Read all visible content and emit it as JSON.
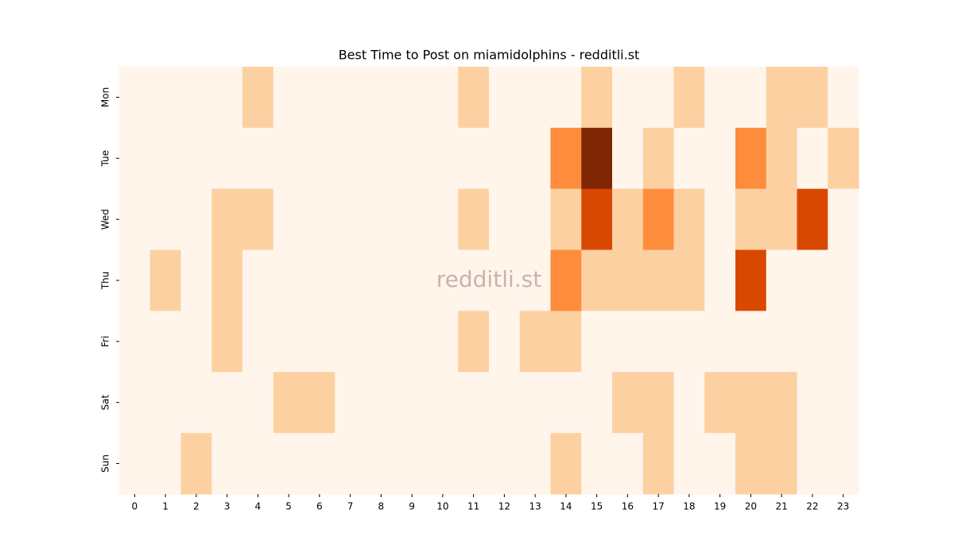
{
  "chart_data": {
    "type": "heatmap",
    "title": "Best Time to Post on miamidolphins - redditli.st",
    "watermark": "redditli.st",
    "xcategories": [
      0,
      1,
      2,
      3,
      4,
      5,
      6,
      7,
      8,
      9,
      10,
      11,
      12,
      13,
      14,
      15,
      16,
      17,
      18,
      19,
      20,
      21,
      22,
      23
    ],
    "ycategories": [
      "Mon",
      "Tue",
      "Wed",
      "Thu",
      "Fri",
      "Sat",
      "Sun"
    ],
    "colormap": "Oranges",
    "zlim": [
      0,
      4
    ],
    "values": [
      [
        0,
        0,
        0,
        0,
        1,
        0,
        0,
        0,
        0,
        0,
        0,
        1,
        0,
        0,
        0,
        1,
        0,
        0,
        1,
        0,
        0,
        1,
        1,
        0
      ],
      [
        0,
        0,
        0,
        0,
        0,
        0,
        0,
        0,
        0,
        0,
        0,
        0,
        0,
        0,
        2,
        4,
        0,
        1,
        0,
        0,
        2,
        1,
        0,
        1
      ],
      [
        0,
        0,
        0,
        1,
        1,
        0,
        0,
        0,
        0,
        0,
        0,
        1,
        0,
        0,
        1,
        3,
        1,
        2,
        1,
        0,
        1,
        1,
        3,
        0
      ],
      [
        0,
        1,
        0,
        1,
        0,
        0,
        0,
        0,
        0,
        0,
        0,
        0,
        0,
        0,
        2,
        1,
        1,
        1,
        1,
        0,
        3,
        0,
        0,
        0
      ],
      [
        0,
        0,
        0,
        1,
        0,
        0,
        0,
        0,
        0,
        0,
        0,
        1,
        0,
        1,
        1,
        0,
        0,
        0,
        0,
        0,
        0,
        0,
        0,
        0
      ],
      [
        0,
        0,
        0,
        0,
        0,
        1,
        1,
        0,
        0,
        0,
        0,
        0,
        0,
        0,
        0,
        0,
        1,
        1,
        0,
        1,
        1,
        1,
        0,
        0
      ],
      [
        0,
        0,
        1,
        0,
        0,
        0,
        0,
        0,
        0,
        0,
        0,
        0,
        0,
        0,
        1,
        0,
        0,
        1,
        0,
        0,
        1,
        1,
        0,
        0
      ]
    ]
  }
}
